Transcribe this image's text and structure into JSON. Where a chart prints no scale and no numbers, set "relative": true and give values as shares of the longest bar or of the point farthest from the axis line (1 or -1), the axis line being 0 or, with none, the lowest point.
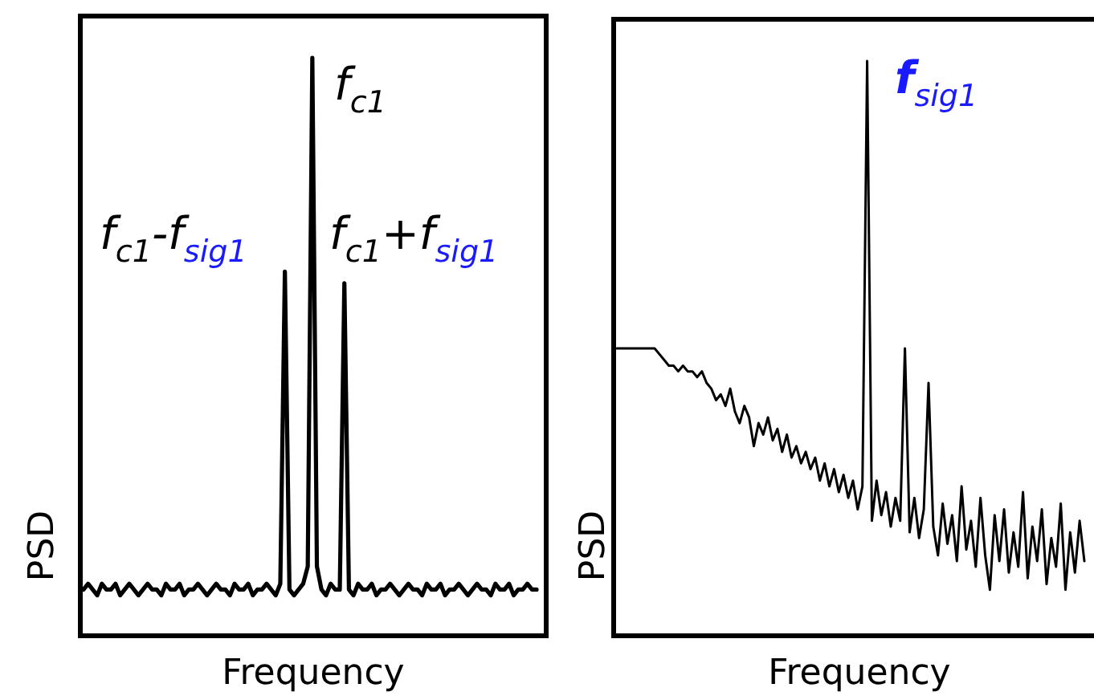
{
  "chart_data": [
    {
      "type": "line",
      "relative": true,
      "xlabel": "Frequency",
      "ylabel": "PSD",
      "annotations": [
        "f$_{c1}$",
        "f$_{c1}$-f$_{sig1}$",
        "f$_{c1}$+f$_{sig1}$"
      ],
      "categories": [
        null,
        null,
        null,
        null,
        null,
        null,
        null,
        null,
        null,
        null,
        null,
        null,
        null,
        null,
        null,
        null,
        null,
        null,
        null,
        null,
        null,
        null,
        null,
        null,
        null,
        null,
        null,
        null,
        null,
        null,
        null,
        null,
        null,
        null,
        null,
        null,
        null,
        null,
        null,
        null,
        null,
        null,
        null,
        null,
        null,
        null,
        null,
        null,
        null,
        null,
        null,
        null,
        null,
        null,
        null,
        null,
        null,
        null,
        null,
        null,
        null,
        null,
        null,
        null,
        null,
        null,
        null,
        null,
        null,
        null,
        null,
        null,
        null,
        null,
        null,
        null,
        null,
        null,
        null,
        null,
        null,
        null,
        null,
        null,
        null,
        null,
        null,
        null,
        null,
        null,
        null,
        null,
        null,
        null,
        null,
        null,
        null,
        null,
        null,
        null
      ],
      "series": [
        {
          "color": "#000000",
          "values": [
            0.08,
            0.09,
            0.08,
            0.07,
            0.09,
            0.08,
            0.08,
            0.09,
            0.07,
            0.08,
            0.09,
            0.08,
            0.07,
            0.08,
            0.09,
            0.08,
            0.08,
            0.07,
            0.09,
            0.08,
            0.08,
            0.09,
            0.07,
            0.08,
            0.08,
            0.09,
            0.08,
            0.07,
            0.08,
            0.09,
            0.08,
            0.08,
            0.07,
            0.09,
            0.08,
            0.08,
            0.09,
            0.07,
            0.08,
            0.08,
            0.09,
            0.08,
            0.07,
            0.09,
            0.63,
            0.08,
            0.07,
            0.08,
            0.09,
            0.12,
            1.0,
            0.12,
            0.08,
            0.07,
            0.09,
            0.08,
            0.08,
            0.61,
            0.08,
            0.07,
            0.09,
            0.08,
            0.08,
            0.09,
            0.07,
            0.08,
            0.08,
            0.09,
            0.08,
            0.07,
            0.08,
            0.09,
            0.08,
            0.08,
            0.07,
            0.09,
            0.08,
            0.08,
            0.09,
            0.07,
            0.08,
            0.08,
            0.09,
            0.08,
            0.07,
            0.08,
            0.09,
            0.08,
            0.08,
            0.07,
            0.09,
            0.08,
            0.08,
            0.09,
            0.07,
            0.08,
            0.08,
            0.09,
            0.08,
            0.08
          ]
        }
      ]
    },
    {
      "type": "line",
      "relative": true,
      "xlabel": "Frequency",
      "ylabel": "PSD",
      "annotations": [
        "f$_{sig1}$"
      ],
      "categories": [
        null,
        null,
        null,
        null,
        null,
        null,
        null,
        null,
        null,
        null,
        null,
        null,
        null,
        null,
        null,
        null,
        null,
        null,
        null,
        null,
        null,
        null,
        null,
        null,
        null,
        null,
        null,
        null,
        null,
        null,
        null,
        null,
        null,
        null,
        null,
        null,
        null,
        null,
        null,
        null,
        null,
        null,
        null,
        null,
        null,
        null,
        null,
        null,
        null,
        null,
        null,
        null,
        null,
        null,
        null,
        null,
        null,
        null,
        null,
        null,
        null,
        null,
        null,
        null,
        null,
        null,
        null,
        null,
        null,
        null,
        null,
        null,
        null,
        null,
        null,
        null,
        null,
        null,
        null,
        null,
        null,
        null,
        null,
        null,
        null,
        null,
        null,
        null,
        null,
        null,
        null,
        null,
        null,
        null,
        null,
        null,
        null,
        null,
        null,
        null
      ],
      "series": [
        {
          "color": "#000000",
          "values": [
            0.5,
            0.5,
            0.5,
            0.5,
            0.5,
            0.5,
            0.5,
            0.5,
            0.5,
            0.49,
            0.48,
            0.47,
            0.47,
            0.46,
            0.47,
            0.46,
            0.46,
            0.45,
            0.46,
            0.44,
            0.43,
            0.41,
            0.42,
            0.4,
            0.43,
            0.39,
            0.37,
            0.4,
            0.38,
            0.33,
            0.37,
            0.35,
            0.38,
            0.34,
            0.36,
            0.32,
            0.35,
            0.31,
            0.33,
            0.3,
            0.32,
            0.29,
            0.31,
            0.27,
            0.3,
            0.26,
            0.29,
            0.25,
            0.28,
            0.24,
            0.27,
            0.22,
            0.26,
            1.0,
            0.2,
            0.27,
            0.21,
            0.25,
            0.19,
            0.24,
            0.2,
            0.5,
            0.18,
            0.24,
            0.17,
            0.22,
            0.44,
            0.19,
            0.14,
            0.23,
            0.16,
            0.21,
            0.13,
            0.26,
            0.15,
            0.2,
            0.12,
            0.24,
            0.14,
            0.08,
            0.21,
            0.13,
            0.22,
            0.11,
            0.18,
            0.12,
            0.25,
            0.1,
            0.19,
            0.13,
            0.22,
            0.09,
            0.17,
            0.12,
            0.23,
            0.08,
            0.18,
            0.11,
            0.2,
            0.13
          ]
        }
      ]
    }
  ]
}
